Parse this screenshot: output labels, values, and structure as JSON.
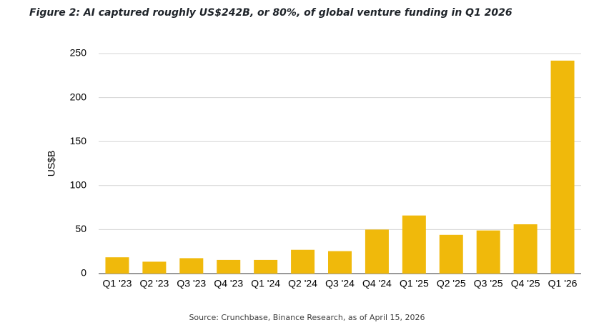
{
  "figure": {
    "title": "Figure 2: AI captured roughly US$242B, or 80%, of global venture funding in Q1 2026",
    "source": "Source: Crunchbase, Binance Research, as of April 15, 2026"
  },
  "chart_data": {
    "type": "bar",
    "title": "Figure 2: AI captured roughly US$242B, or 80%, of global venture funding in Q1 2026",
    "xlabel": "",
    "ylabel": "US$B",
    "ylim": [
      0,
      250
    ],
    "yticks": [
      0,
      50,
      100,
      150,
      200,
      250
    ],
    "grid": true,
    "legend": "none",
    "bar_color": "#F0B90B",
    "categories": [
      "Q1 '23",
      "Q2 '23",
      "Q3 '23",
      "Q4 '23",
      "Q1 '24",
      "Q2 '24",
      "Q3 '24",
      "Q4 '24",
      "Q1 '25",
      "Q2 '25",
      "Q3 '25",
      "Q4 '25",
      "Q1 '26"
    ],
    "values": [
      18.5,
      13.5,
      17.5,
      15.5,
      15.5,
      27,
      25.5,
      50,
      66,
      44,
      49,
      56,
      242
    ]
  }
}
